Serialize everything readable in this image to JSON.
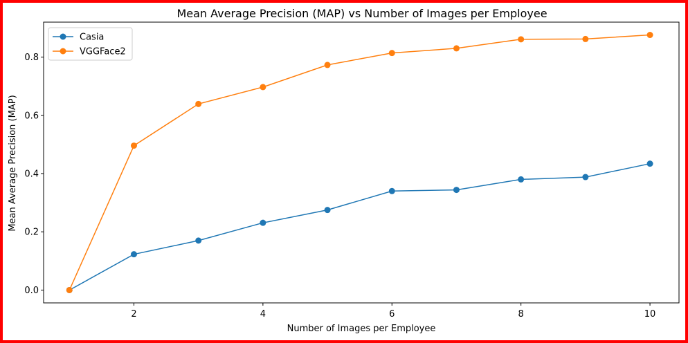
{
  "chart_data": {
    "type": "line",
    "title": "Mean Average Precision (MAP) vs Number of Images per Employee",
    "xlabel": "Number of Images per Employee",
    "ylabel": "Mean Average Precision (MAP)",
    "x": [
      1,
      2,
      3,
      4,
      5,
      6,
      7,
      8,
      9,
      10
    ],
    "xlim": [
      0.6,
      10.45
    ],
    "ylim": [
      -0.044,
      0.92
    ],
    "xticks": [
      2,
      4,
      6,
      8,
      10
    ],
    "yticks": [
      0.0,
      0.2,
      0.4,
      0.6,
      0.8
    ],
    "xtick_labels": [
      "2",
      "4",
      "6",
      "8",
      "10"
    ],
    "ytick_labels": [
      "0.0",
      "0.2",
      "0.4",
      "0.6",
      "0.8"
    ],
    "grid": false,
    "legend_position": "top-left",
    "series": [
      {
        "name": "Casia",
        "color": "#1f77b4",
        "values": [
          0.0,
          0.123,
          0.17,
          0.231,
          0.275,
          0.34,
          0.344,
          0.38,
          0.388,
          0.434
        ]
      },
      {
        "name": "VGGFace2",
        "color": "#ff7f0e",
        "values": [
          0.0,
          0.496,
          0.639,
          0.697,
          0.773,
          0.814,
          0.83,
          0.861,
          0.862,
          0.876
        ]
      }
    ]
  }
}
